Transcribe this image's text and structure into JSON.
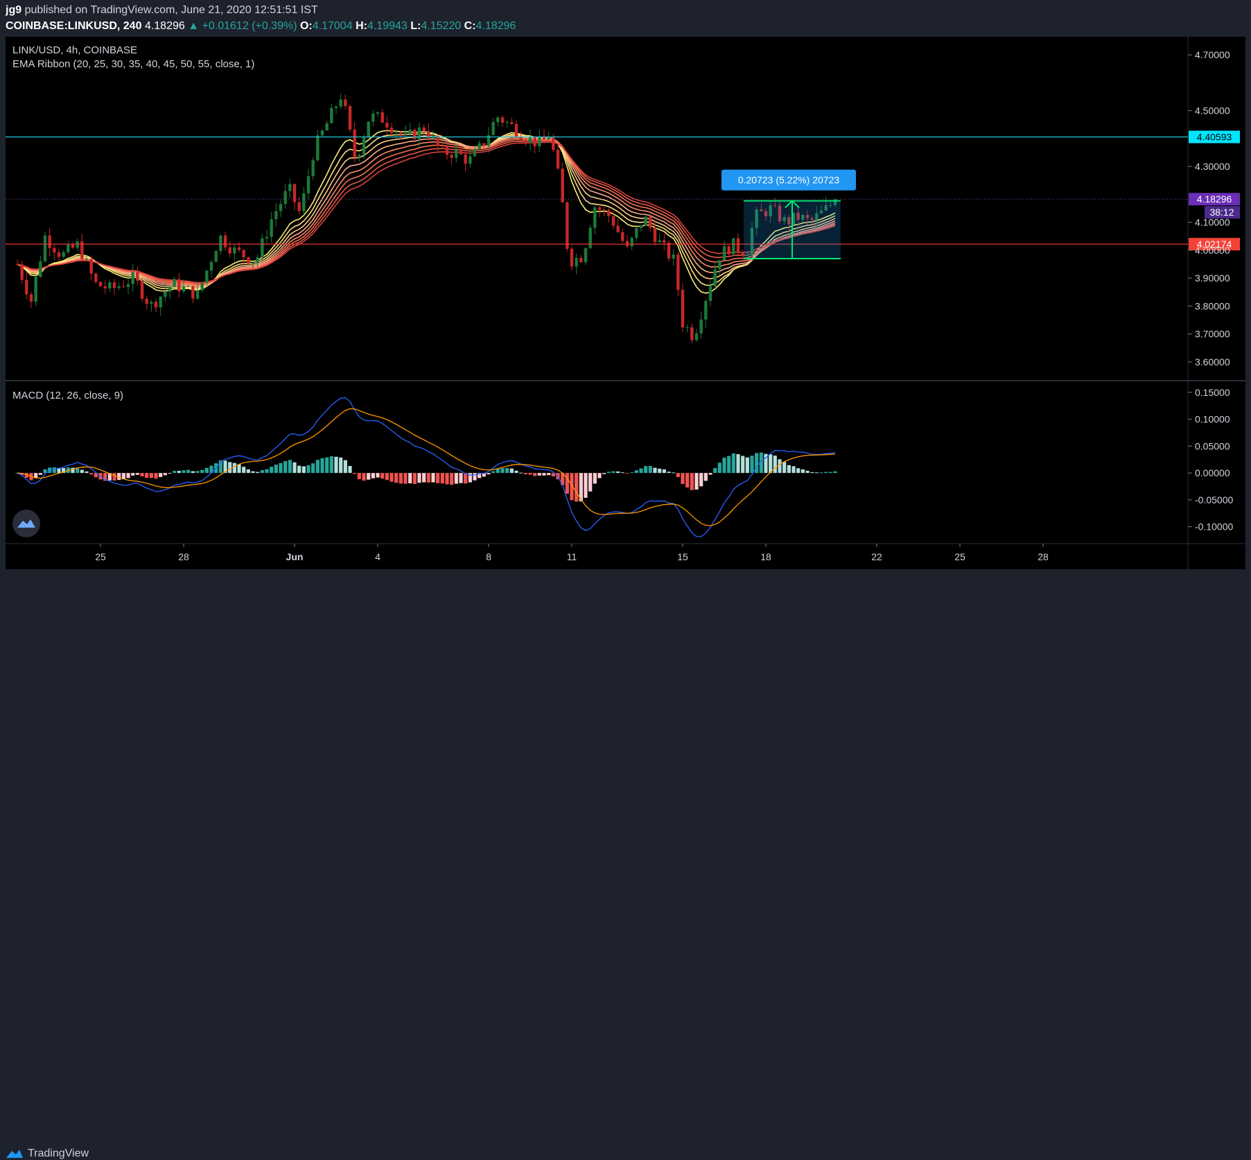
{
  "header": {
    "author": "jg9",
    "published_text": " published on TradingView.com, June 21, 2020 12:51:51 IST",
    "symbol": "COINBASE:LINKUSD, 240",
    "last": "4.18296",
    "change": "+0.01612 (+0.39%)",
    "open_label": "O:",
    "open": "4.17004",
    "high_label": "H:",
    "high": "4.19943",
    "low_label": "L:",
    "low": "4.15220",
    "close_label": "C:",
    "close": "4.18296"
  },
  "legend": {
    "title": "LINK/USD, 4h, COINBASE",
    "ema": "EMA Ribbon (20, 25, 30, 35, 40, 45, 50, 55, close, 1)",
    "macd": "MACD (12, 26, close, 9)"
  },
  "footer": {
    "brand": "TradingView"
  },
  "colors": {
    "up": "#26a69a",
    "down": "#ef5350",
    "cyan_line": "#26c6da",
    "red_line": "#e53935",
    "price_tag": "#6a2fb6",
    "macd_line": "#2962ff",
    "signal_line": "#ff9800",
    "measure_box": "#2196f3",
    "measure_green": "#00e676"
  },
  "chart_data": [
    {
      "type": "candlestick",
      "ylim": [
        3.56,
        4.74
      ],
      "y_ticks": [
        "4.70000",
        "4.50000",
        "4.30000",
        "4.10000",
        "4.00000",
        "3.90000",
        "3.80000",
        "3.70000",
        "3.60000"
      ],
      "x_ticks": [
        "25",
        "28",
        "Jun",
        "4",
        "8",
        "11",
        "15",
        "18",
        "22",
        "25",
        "28"
      ],
      "close_anchors": [
        {
          "day": 22.0,
          "close": 3.95
        },
        {
          "day": 22.5,
          "close": 3.82
        },
        {
          "day": 23.0,
          "close": 4.05
        },
        {
          "day": 23.6,
          "close": 3.98
        },
        {
          "day": 24.2,
          "close": 4.02
        },
        {
          "day": 24.8,
          "close": 3.88
        },
        {
          "day": 25.4,
          "close": 3.86
        },
        {
          "day": 26.2,
          "close": 3.9
        },
        {
          "day": 26.8,
          "close": 3.8
        },
        {
          "day": 27.6,
          "close": 3.88
        },
        {
          "day": 28.5,
          "close": 3.84
        },
        {
          "day": 29.3,
          "close": 4.05
        },
        {
          "day": 29.8,
          "close": 4.0
        },
        {
          "day": 30.6,
          "close": 3.96
        },
        {
          "day": 31.2,
          "close": 4.12
        },
        {
          "day": 31.8,
          "close": 4.22
        },
        {
          "day": 32.2,
          "close": 4.13
        },
        {
          "day": 32.7,
          "close": 4.36
        },
        {
          "day": 33.3,
          "close": 4.48
        },
        {
          "day": 33.7,
          "close": 4.56
        },
        {
          "day": 34.2,
          "close": 4.32
        },
        {
          "day": 34.7,
          "close": 4.48
        },
        {
          "day": 35.2,
          "close": 4.47
        },
        {
          "day": 36.0,
          "close": 4.4
        },
        {
          "day": 36.7,
          "close": 4.44
        },
        {
          "day": 37.3,
          "close": 4.35
        },
        {
          "day": 37.8,
          "close": 4.35
        },
        {
          "day": 38.3,
          "close": 4.32
        },
        {
          "day": 38.8,
          "close": 4.38
        },
        {
          "day": 39.3,
          "close": 4.48
        },
        {
          "day": 39.9,
          "close": 4.44
        },
        {
          "day": 40.4,
          "close": 4.4
        },
        {
          "day": 40.9,
          "close": 4.38
        },
        {
          "day": 41.2,
          "close": 4.42
        },
        {
          "day": 41.6,
          "close": 4.22
        },
        {
          "day": 41.9,
          "close": 3.96
        },
        {
          "day": 42.4,
          "close": 3.98
        },
        {
          "day": 42.8,
          "close": 4.16
        },
        {
          "day": 43.4,
          "close": 4.12
        },
        {
          "day": 44.0,
          "close": 4.0
        },
        {
          "day": 44.6,
          "close": 4.12
        },
        {
          "day": 45.2,
          "close": 4.02
        },
        {
          "day": 45.7,
          "close": 3.96
        },
        {
          "day": 46.0,
          "close": 3.74
        },
        {
          "day": 46.4,
          "close": 3.69
        },
        {
          "day": 46.8,
          "close": 3.82
        },
        {
          "day": 47.3,
          "close": 3.98
        },
        {
          "day": 47.8,
          "close": 4.02
        },
        {
          "day": 48.3,
          "close": 3.99
        },
        {
          "day": 48.6,
          "close": 4.12
        },
        {
          "day": 49.2,
          "close": 4.15
        },
        {
          "day": 49.7,
          "close": 4.1
        },
        {
          "day": 50.2,
          "close": 4.12
        },
        {
          "day": 50.6,
          "close": 4.1
        },
        {
          "day": 51.2,
          "close": 4.15
        },
        {
          "day": 51.5,
          "close": 4.18
        }
      ],
      "horizontal_lines": [
        {
          "value": 4.40593,
          "label": "4.40593",
          "color": "#26c6da"
        },
        {
          "value": 4.02174,
          "label": "4.02174",
          "color": "#e53935"
        }
      ],
      "last_price": {
        "value": 4.18296,
        "label": "4.18296",
        "countdown": "38:12"
      },
      "ema_ribbon": {
        "periods": [
          20,
          25,
          30,
          35,
          40,
          45,
          50,
          55
        ]
      },
      "measure": {
        "label": "0.20723 (5.22%) 20723",
        "x_from": 48.2,
        "x_to": 51.7,
        "y_from": 3.97,
        "y_to": 4.177
      }
    },
    {
      "type": "macd",
      "ylim": [
        -0.13,
        0.16
      ],
      "y_ticks": [
        "0.15000",
        "0.10000",
        "0.05000",
        "0.00000",
        "-0.05000",
        "-0.10000"
      ],
      "params": "12, 26, close, 9"
    }
  ]
}
